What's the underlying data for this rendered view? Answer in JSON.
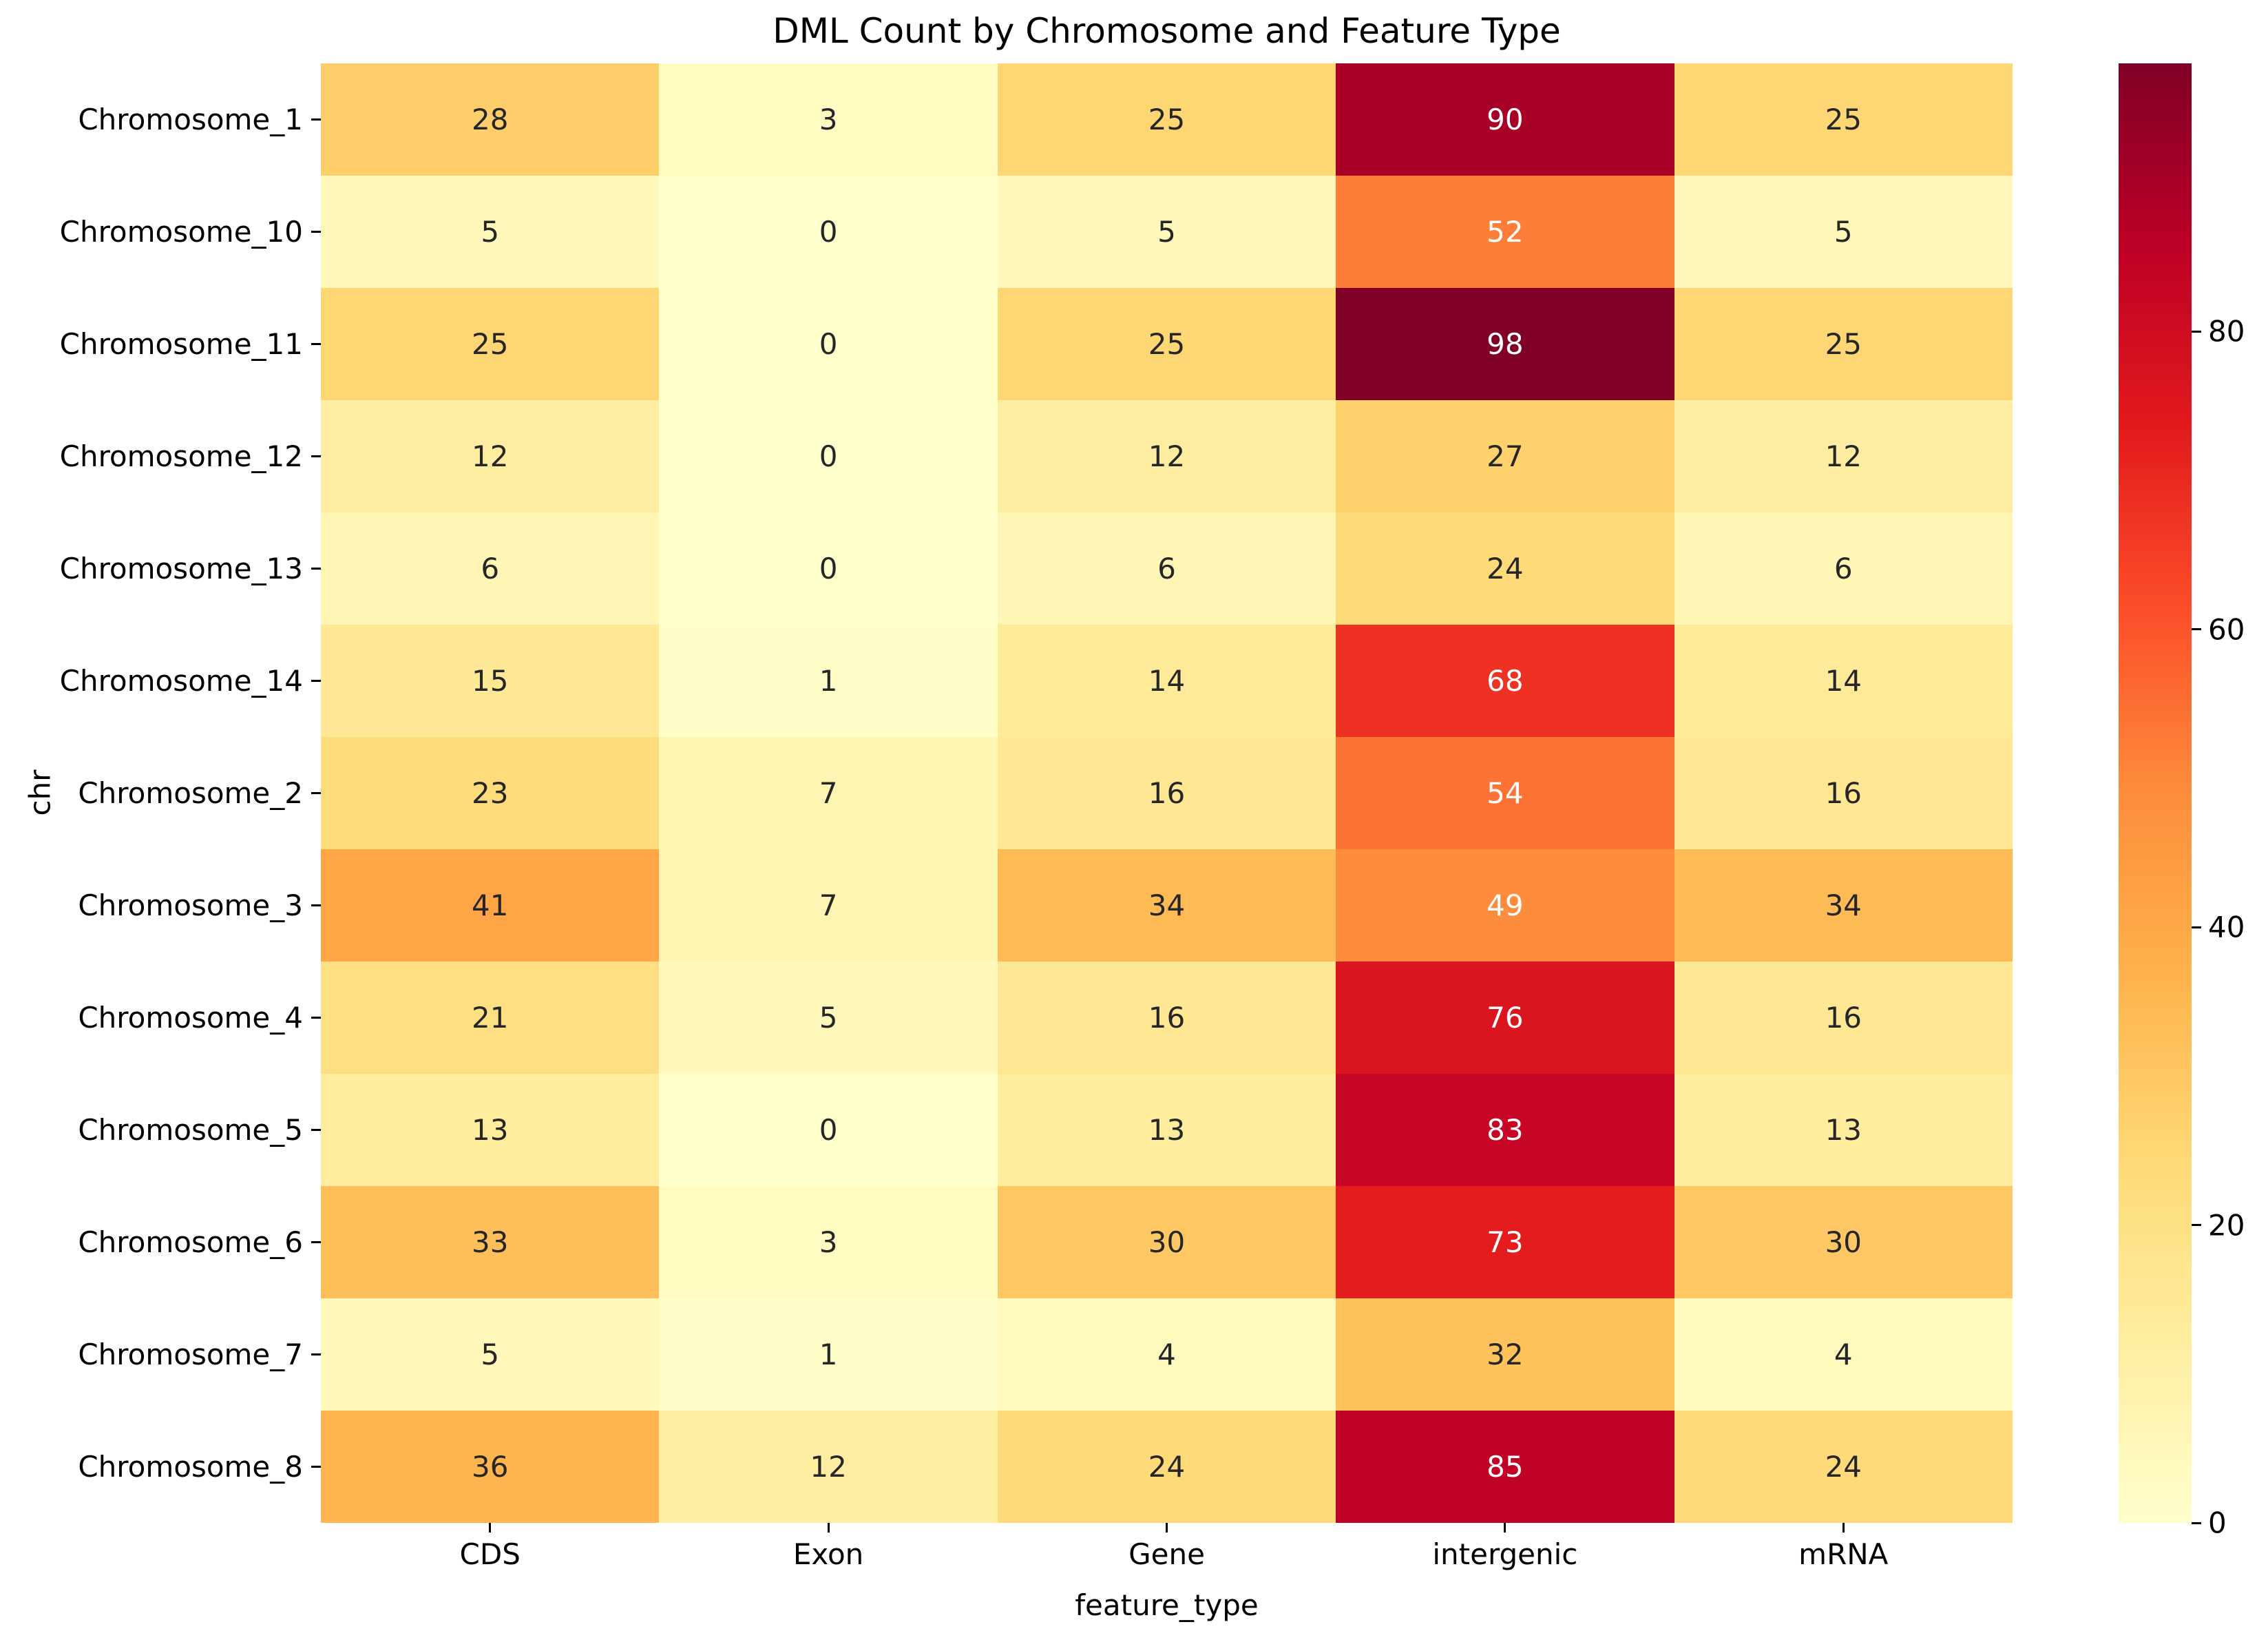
{
  "title": "DML Count by Chromosome and Feature Type",
  "chart_data": {
    "type": "heatmap",
    "title": "DML Count by Chromosome and Feature Type",
    "xlabel": "feature_type",
    "ylabel": "chr",
    "columns": [
      "CDS",
      "Exon",
      "Gene",
      "intergenic",
      "mRNA"
    ],
    "rows": [
      "Chromosome_1",
      "Chromosome_10",
      "Chromosome_11",
      "Chromosome_12",
      "Chromosome_13",
      "Chromosome_14",
      "Chromosome_2",
      "Chromosome_3",
      "Chromosome_4",
      "Chromosome_5",
      "Chromosome_6",
      "Chromosome_7",
      "Chromosome_8"
    ],
    "values": [
      [
        28,
        3,
        25,
        90,
        25
      ],
      [
        5,
        0,
        5,
        52,
        5
      ],
      [
        25,
        0,
        25,
        98,
        25
      ],
      [
        12,
        0,
        12,
        27,
        12
      ],
      [
        6,
        0,
        6,
        24,
        6
      ],
      [
        15,
        1,
        14,
        68,
        14
      ],
      [
        23,
        7,
        16,
        54,
        16
      ],
      [
        41,
        7,
        34,
        49,
        34
      ],
      [
        21,
        5,
        16,
        76,
        16
      ],
      [
        13,
        0,
        13,
        83,
        13
      ],
      [
        33,
        3,
        30,
        73,
        30
      ],
      [
        5,
        1,
        4,
        32,
        4
      ],
      [
        36,
        12,
        24,
        85,
        24
      ]
    ],
    "vmin": 0,
    "vmax": 98,
    "annotated": true,
    "grid": false,
    "colormap": "YlOrRd",
    "colormap_stops": [
      "#ffffcc",
      "#ffeda0",
      "#fed976",
      "#feb24c",
      "#fd8d3c",
      "#fc4e2a",
      "#e31a1c",
      "#bd0026",
      "#800026"
    ],
    "annotation_dark_text_color": "#262626",
    "annotation_light_text_color": "#ffffff",
    "axis_text_color": "#000000",
    "background_color": "#ffffff",
    "colorbar": {
      "position": "right",
      "ticks": [
        0,
        20,
        40,
        60,
        80
      ]
    }
  }
}
